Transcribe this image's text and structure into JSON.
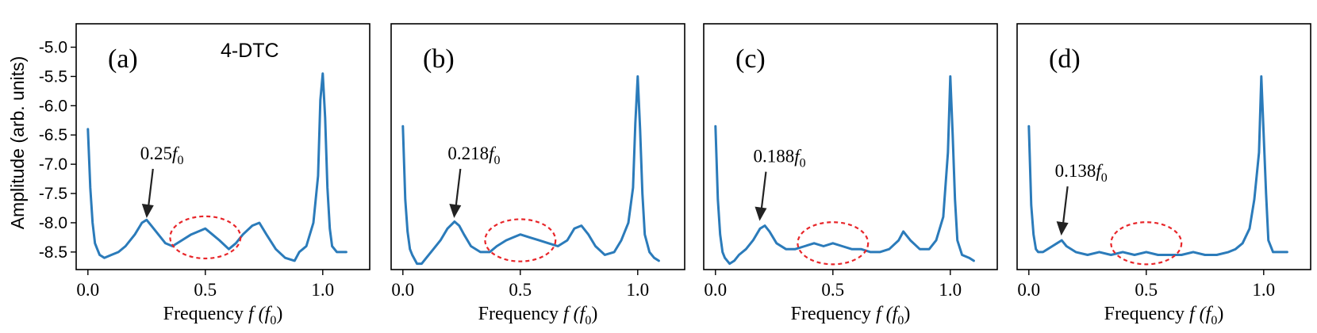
{
  "figure": {
    "ylabel": "Amplitude (arb. units)",
    "xlabel_prefix": "Frequency ",
    "xlabel_var": "f",
    "xlabel_unit_base": "f",
    "xlabel_unit_sub": "0"
  },
  "colors": {
    "series": "#2b7bba",
    "highlight": "#e8262a",
    "axes": "#000000"
  },
  "chart_data": [
    {
      "type": "line",
      "panel_label": "(a)",
      "inset_title": "4-DTC",
      "xlabel": "Frequency f (f0)",
      "ylabel": "Amplitude (arb. units)",
      "xlim": [
        -0.05,
        1.2
      ],
      "ylim": [
        -8.8,
        -4.6
      ],
      "xticks": [
        0.0,
        0.5,
        1.0
      ],
      "xtick_labels": [
        "0.0",
        "0.5",
        "1.0"
      ],
      "yticks": [
        -8.5,
        -8.0,
        -7.5,
        -7.0,
        -6.5,
        -6.0,
        -5.5,
        -5.0
      ],
      "ytick_labels": [
        "-8.5",
        "-8.0",
        "-7.5",
        "-7.0",
        "-6.5",
        "-6.0",
        "-5.5",
        "-5.0"
      ],
      "annotation": {
        "text_base": "0.25",
        "text_var": "f",
        "text_sub": "0",
        "x": 0.25,
        "y": -8.0
      },
      "highlight_circle": {
        "cx": 0.5,
        "cy": -8.25,
        "rx": 0.15,
        "ry": 0.36
      },
      "series": [
        {
          "x": [
            0.0,
            0.01,
            0.02,
            0.03,
            0.04,
            0.05,
            0.07,
            0.1,
            0.13,
            0.16,
            0.2,
            0.23,
            0.25,
            0.27,
            0.3,
            0.33,
            0.36,
            0.4,
            0.44,
            0.47,
            0.5,
            0.53,
            0.56,
            0.6,
            0.63,
            0.66,
            0.7,
            0.73,
            0.76,
            0.8,
            0.84,
            0.88,
            0.9,
            0.93,
            0.96,
            0.98,
            0.99,
            1.0,
            1.01,
            1.02,
            1.03,
            1.04,
            1.06,
            1.08,
            1.1
          ],
          "y": [
            -6.4,
            -7.4,
            -8.0,
            -8.35,
            -8.45,
            -8.55,
            -8.6,
            -8.55,
            -8.5,
            -8.4,
            -8.2,
            -8.0,
            -7.95,
            -8.05,
            -8.2,
            -8.35,
            -8.4,
            -8.3,
            -8.2,
            -8.15,
            -8.1,
            -8.2,
            -8.3,
            -8.45,
            -8.35,
            -8.2,
            -8.05,
            -8.0,
            -8.2,
            -8.45,
            -8.6,
            -8.65,
            -8.5,
            -8.4,
            -8.0,
            -7.2,
            -5.9,
            -5.45,
            -6.2,
            -7.4,
            -8.1,
            -8.4,
            -8.5,
            -8.5,
            -8.5
          ]
        }
      ]
    },
    {
      "type": "line",
      "panel_label": "(b)",
      "xlabel": "Frequency f (f0)",
      "xlim": [
        -0.05,
        1.2
      ],
      "ylim": [
        -8.8,
        -4.6
      ],
      "xticks": [
        0.0,
        0.5,
        1.0
      ],
      "xtick_labels": [
        "0.0",
        "0.5",
        "1.0"
      ],
      "annotation": {
        "text_base": "0.218",
        "text_var": "f",
        "text_sub": "0",
        "x": 0.218,
        "y": -8.0
      },
      "highlight_circle": {
        "cx": 0.5,
        "cy": -8.3,
        "rx": 0.15,
        "ry": 0.36
      },
      "series": [
        {
          "x": [
            0.0,
            0.01,
            0.02,
            0.03,
            0.04,
            0.06,
            0.08,
            0.1,
            0.13,
            0.16,
            0.19,
            0.22,
            0.24,
            0.26,
            0.29,
            0.33,
            0.37,
            0.4,
            0.44,
            0.47,
            0.5,
            0.54,
            0.58,
            0.62,
            0.66,
            0.7,
            0.73,
            0.76,
            0.79,
            0.82,
            0.86,
            0.9,
            0.93,
            0.96,
            0.98,
            0.99,
            1.0,
            1.01,
            1.02,
            1.03,
            1.05,
            1.07,
            1.09
          ],
          "y": [
            -6.35,
            -7.6,
            -8.15,
            -8.45,
            -8.55,
            -8.7,
            -8.7,
            -8.6,
            -8.45,
            -8.3,
            -8.1,
            -7.98,
            -8.05,
            -8.2,
            -8.4,
            -8.5,
            -8.5,
            -8.4,
            -8.3,
            -8.25,
            -8.2,
            -8.25,
            -8.3,
            -8.35,
            -8.4,
            -8.3,
            -8.1,
            -8.05,
            -8.2,
            -8.4,
            -8.55,
            -8.5,
            -8.3,
            -8.0,
            -7.4,
            -6.3,
            -5.5,
            -6.4,
            -7.5,
            -8.2,
            -8.5,
            -8.6,
            -8.65
          ]
        }
      ]
    },
    {
      "type": "line",
      "panel_label": "(c)",
      "xlabel": "Frequency f (f0)",
      "xlim": [
        -0.05,
        1.2
      ],
      "ylim": [
        -8.8,
        -4.6
      ],
      "xticks": [
        0.0,
        0.5,
        1.0
      ],
      "xtick_labels": [
        "0.0",
        "0.5",
        "1.0"
      ],
      "annotation": {
        "text_base": "0.188",
        "text_var": "f",
        "text_sub": "0",
        "x": 0.188,
        "y": -8.05
      },
      "highlight_circle": {
        "cx": 0.5,
        "cy": -8.35,
        "rx": 0.15,
        "ry": 0.36
      },
      "series": [
        {
          "x": [
            0.0,
            0.01,
            0.02,
            0.03,
            0.04,
            0.06,
            0.08,
            0.1,
            0.13,
            0.16,
            0.19,
            0.21,
            0.23,
            0.26,
            0.3,
            0.34,
            0.38,
            0.42,
            0.46,
            0.5,
            0.54,
            0.58,
            0.62,
            0.66,
            0.7,
            0.74,
            0.78,
            0.8,
            0.83,
            0.87,
            0.91,
            0.94,
            0.97,
            0.99,
            1.0,
            1.01,
            1.02,
            1.03,
            1.05,
            1.08,
            1.1
          ],
          "y": [
            -6.35,
            -7.6,
            -8.2,
            -8.5,
            -8.6,
            -8.7,
            -8.65,
            -8.55,
            -8.45,
            -8.3,
            -8.1,
            -8.05,
            -8.15,
            -8.35,
            -8.45,
            -8.45,
            -8.4,
            -8.35,
            -8.4,
            -8.35,
            -8.4,
            -8.45,
            -8.45,
            -8.5,
            -8.5,
            -8.45,
            -8.3,
            -8.15,
            -8.3,
            -8.45,
            -8.45,
            -8.3,
            -7.9,
            -6.8,
            -5.5,
            -6.5,
            -7.6,
            -8.3,
            -8.55,
            -8.6,
            -8.65
          ]
        }
      ]
    },
    {
      "type": "line",
      "panel_label": "(d)",
      "xlabel": "Frequency f (f0)",
      "xlim": [
        -0.05,
        1.2
      ],
      "ylim": [
        -8.8,
        -4.6
      ],
      "xticks": [
        0.0,
        0.5,
        1.0
      ],
      "xtick_labels": [
        "0.0",
        "0.5",
        "1.0"
      ],
      "annotation": {
        "text_base": "0.138",
        "text_var": "f",
        "text_sub": "0",
        "x": 0.138,
        "y": -8.3
      },
      "highlight_circle": {
        "cx": 0.5,
        "cy": -8.35,
        "rx": 0.15,
        "ry": 0.36
      },
      "series": [
        {
          "x": [
            0.0,
            0.01,
            0.02,
            0.03,
            0.04,
            0.06,
            0.08,
            0.1,
            0.12,
            0.14,
            0.16,
            0.2,
            0.25,
            0.3,
            0.35,
            0.4,
            0.45,
            0.5,
            0.55,
            0.6,
            0.65,
            0.7,
            0.75,
            0.8,
            0.85,
            0.88,
            0.91,
            0.94,
            0.96,
            0.98,
            0.99,
            1.0,
            1.01,
            1.02,
            1.04,
            1.07,
            1.1
          ],
          "y": [
            -6.35,
            -7.7,
            -8.2,
            -8.45,
            -8.5,
            -8.5,
            -8.45,
            -8.4,
            -8.35,
            -8.3,
            -8.4,
            -8.5,
            -8.55,
            -8.5,
            -8.55,
            -8.5,
            -8.55,
            -8.5,
            -8.55,
            -8.55,
            -8.55,
            -8.5,
            -8.55,
            -8.55,
            -8.5,
            -8.45,
            -8.35,
            -8.1,
            -7.6,
            -6.8,
            -5.5,
            -6.5,
            -7.5,
            -8.3,
            -8.5,
            -8.5,
            -8.5
          ]
        }
      ]
    }
  ]
}
